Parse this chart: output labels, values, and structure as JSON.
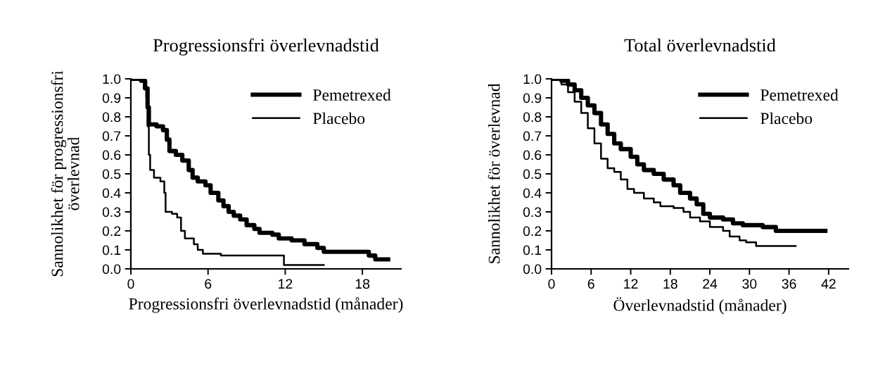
{
  "chart_data": [
    {
      "type": "step",
      "title": "Progressionsfri överlevnadstid",
      "xlabel": "Progressionsfri överlevnadstid (månader)",
      "ylabel": "Sannolikhet för progressionsfri\növerlevnad",
      "xlim": [
        0,
        21
      ],
      "xticks": [
        0,
        6,
        12,
        18
      ],
      "ylim": [
        0,
        1
      ],
      "yticks": [
        {
          "value": 0,
          "label": "0.0"
        },
        {
          "value": 0.1,
          "label": "0.1"
        },
        {
          "value": 0.2,
          "label": "0.2"
        },
        {
          "value": 0.3,
          "label": "0.3"
        },
        {
          "value": 0.4,
          "label": "0.4"
        },
        {
          "value": 0.5,
          "label": "0.5"
        },
        {
          "value": 0.6,
          "label": "0.6"
        },
        {
          "value": 0.7,
          "label": "0.7"
        },
        {
          "value": 0.8,
          "label": "0.8"
        },
        {
          "value": 0.9,
          "label": "0.9"
        },
        {
          "value": 1,
          "label": "1.0"
        }
      ],
      "grid": false,
      "legend": "top right",
      "series": [
        {
          "name": "Pemetrexed",
          "color": "#000000",
          "x": [
            0,
            0.8,
            1.1,
            1.3,
            1.4,
            2.0,
            2.5,
            2.8,
            3.0,
            3.5,
            4.0,
            4.5,
            4.8,
            5.2,
            5.8,
            6.2,
            6.8,
            7.2,
            7.6,
            8.0,
            8.5,
            9.0,
            9.6,
            10.0,
            11.0,
            11.5,
            12.5,
            13.5,
            14.5,
            15.0,
            18.0,
            18.5,
            19.0,
            20.0
          ],
          "values": [
            1.0,
            0.99,
            0.95,
            0.85,
            0.76,
            0.75,
            0.73,
            0.68,
            0.62,
            0.6,
            0.57,
            0.52,
            0.48,
            0.46,
            0.44,
            0.4,
            0.36,
            0.33,
            0.3,
            0.28,
            0.26,
            0.23,
            0.21,
            0.19,
            0.18,
            0.16,
            0.15,
            0.13,
            0.11,
            0.09,
            0.09,
            0.07,
            0.05,
            0.05
          ]
        },
        {
          "name": "Placebo",
          "color": "#000000",
          "x": [
            0,
            1.0,
            1.2,
            1.3,
            1.4,
            1.5,
            1.8,
            2.3,
            2.6,
            2.7,
            3.2,
            3.6,
            3.9,
            4.2,
            4.9,
            5.2,
            5.6,
            7.0,
            11.7,
            11.9,
            15.0
          ],
          "values": [
            1.0,
            0.99,
            0.9,
            0.75,
            0.6,
            0.52,
            0.48,
            0.46,
            0.4,
            0.3,
            0.29,
            0.27,
            0.2,
            0.16,
            0.13,
            0.1,
            0.08,
            0.07,
            0.07,
            0.02,
            0.02
          ]
        }
      ]
    },
    {
      "type": "step",
      "title": "Total överlevnadstid",
      "xlabel": "Överlevnadstid (månader)",
      "ylabel": "Sannolikhet för överlevnad",
      "xlim": [
        0,
        45
      ],
      "xticks": [
        0,
        6,
        12,
        18,
        24,
        30,
        36,
        42
      ],
      "ylim": [
        0,
        1
      ],
      "yticks": [
        {
          "value": 0,
          "label": "0.0"
        },
        {
          "value": 0.1,
          "label": "0.1"
        },
        {
          "value": 0.2,
          "label": "0.2"
        },
        {
          "value": 0.3,
          "label": "0.3"
        },
        {
          "value": 0.4,
          "label": "0.4"
        },
        {
          "value": 0.5,
          "label": "0.5"
        },
        {
          "value": 0.6,
          "label": "0.6"
        },
        {
          "value": 0.7,
          "label": "0.7"
        },
        {
          "value": 0.8,
          "label": "0.8"
        },
        {
          "value": 0.9,
          "label": "0.9"
        },
        {
          "value": 1,
          "label": "1.0"
        }
      ],
      "grid": false,
      "legend": "top right",
      "series": [
        {
          "name": "Pemetrexed",
          "color": "#000000",
          "x": [
            0,
            1.5,
            2.5,
            3.5,
            4.5,
            5.5,
            6.5,
            7.5,
            8.5,
            9.5,
            10.5,
            12,
            13,
            14,
            15.5,
            17,
            18.5,
            19.5,
            21,
            22,
            23,
            24,
            26,
            27.5,
            29,
            32,
            34,
            41.5
          ],
          "values": [
            1.0,
            0.99,
            0.97,
            0.94,
            0.9,
            0.86,
            0.82,
            0.76,
            0.71,
            0.66,
            0.63,
            0.59,
            0.55,
            0.52,
            0.5,
            0.47,
            0.44,
            0.4,
            0.37,
            0.34,
            0.29,
            0.27,
            0.26,
            0.24,
            0.23,
            0.22,
            0.2,
            0.2
          ]
        },
        {
          "name": "Placebo",
          "color": "#000000",
          "x": [
            0,
            1.5,
            2.5,
            3.5,
            4.5,
            5.5,
            6.5,
            7.5,
            8.5,
            9.5,
            10.5,
            11.5,
            12.5,
            14,
            15.5,
            16.5,
            18.5,
            20,
            21,
            22.5,
            24,
            26,
            27,
            28.5,
            29.5,
            31,
            37
          ],
          "values": [
            1.0,
            0.97,
            0.93,
            0.88,
            0.82,
            0.74,
            0.66,
            0.58,
            0.53,
            0.51,
            0.47,
            0.42,
            0.4,
            0.37,
            0.35,
            0.33,
            0.32,
            0.3,
            0.27,
            0.25,
            0.22,
            0.2,
            0.17,
            0.15,
            0.14,
            0.12,
            0.12
          ]
        }
      ]
    }
  ]
}
